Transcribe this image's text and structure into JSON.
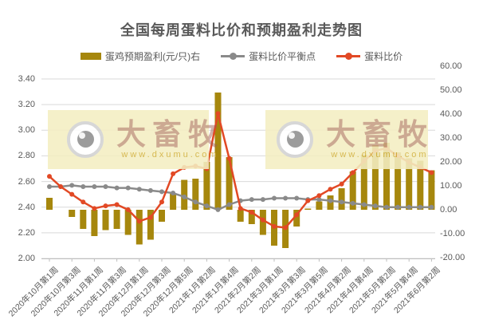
{
  "title": "全国每周蛋料比价和预期盈利走势图",
  "watermark": {
    "brand": "大畜牧",
    "url": "www.dxumu.com"
  },
  "colors": {
    "bar": "#a6870d",
    "line_red": "#e24925",
    "line_gray": "#8a8a8a",
    "grid": "#d9d9d9",
    "axis": "#bfbfbf",
    "text": "#595959"
  },
  "chart_data": {
    "type": "combo",
    "title": "全国每周蛋料比价和预期盈利走势图",
    "legend": [
      {
        "label": "蛋鸡预期盈利(元/只)右",
        "kind": "bar",
        "color": "#a6870d"
      },
      {
        "label": "蛋料比价平衡点",
        "kind": "line",
        "color": "#8a8a8a"
      },
      {
        "label": "蛋料比价",
        "kind": "line",
        "color": "#e24925"
      }
    ],
    "left_axis": {
      "min": 2.0,
      "max": 3.4,
      "step": 0.2,
      "tick_labels": [
        "3.40",
        "3.20",
        "3.00",
        "2.80",
        "2.60",
        "2.40",
        "2.20",
        "2.00"
      ]
    },
    "right_axis": {
      "min": -20,
      "max": 60,
      "step": 10,
      "tick_labels": [
        "60.00",
        "50.00",
        "40.00",
        "30.00",
        "20.00",
        "10.00",
        "0.00",
        "-10.00",
        "-20.00"
      ]
    },
    "x_tick_labels": [
      "2020年10月第1周",
      "2020年10月第3周",
      "2020年11月第1周",
      "2020年11月第3周",
      "2020年12月第1周",
      "2020年12月第3周",
      "2020年12月第5周",
      "2021年1月第2周",
      "2021年1月第4周",
      "2021年2月第2周",
      "2021年3月第1周",
      "2021年3月第3周",
      "2021年3月第5周",
      "2021年4月第2周",
      "2021年4月第4周",
      "2021年5月第2周",
      "2021年5月第4周",
      "2021年6月第2周"
    ],
    "x_tick_every": 2,
    "n_points": 35,
    "series": [
      {
        "name": "蛋鸡预期盈利(元/只)右",
        "type": "bar",
        "axis": "right",
        "values": [
          5,
          0,
          -3,
          -8,
          -11,
          -8.5,
          -8,
          -10.5,
          -14.5,
          -12.5,
          -5,
          7,
          12.5,
          13,
          20,
          49,
          22,
          -5,
          -6,
          -10.5,
          -15,
          -16,
          -7,
          0.5,
          3.5,
          6,
          9,
          16,
          23,
          27,
          28,
          24,
          21.5,
          20.5,
          16.5
        ]
      },
      {
        "name": "蛋料比价平衡点",
        "type": "line",
        "axis": "left",
        "values": [
          2.56,
          2.56,
          2.57,
          2.56,
          2.56,
          2.56,
          2.55,
          2.55,
          2.54,
          2.53,
          2.52,
          2.51,
          2.48,
          2.44,
          2.41,
          2.38,
          2.42,
          2.45,
          2.46,
          2.46,
          2.47,
          2.47,
          2.47,
          2.46,
          2.46,
          2.45,
          2.44,
          2.43,
          2.42,
          2.41,
          2.4,
          2.4,
          2.4,
          2.4,
          2.4
        ]
      },
      {
        "name": "蛋料比价",
        "type": "line",
        "axis": "left",
        "values": [
          2.64,
          2.56,
          2.5,
          2.44,
          2.39,
          2.41,
          2.42,
          2.38,
          2.29,
          2.32,
          2.44,
          2.66,
          2.71,
          2.72,
          2.7,
          3.13,
          2.78,
          2.39,
          2.36,
          2.3,
          2.25,
          2.24,
          2.34,
          2.45,
          2.49,
          2.54,
          2.58,
          2.67,
          2.76,
          2.84,
          2.86,
          2.8,
          2.75,
          2.71,
          2.67
        ]
      }
    ],
    "grid": true,
    "legend_position": "top"
  }
}
